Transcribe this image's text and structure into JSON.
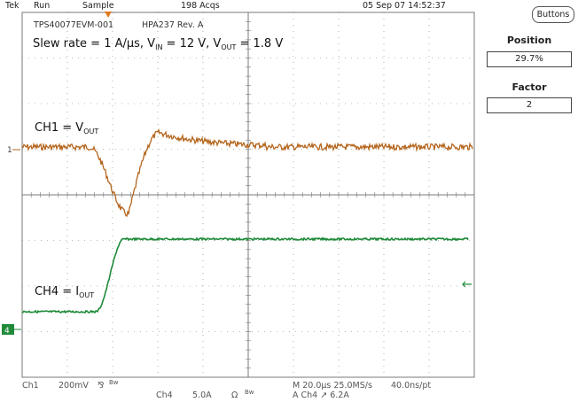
{
  "topbar": {
    "brand": "Tek",
    "run_state": "Run",
    "mode": "Sample",
    "acqs": "198 Acqs",
    "datetime": "05 Sep 07 14:52:37"
  },
  "screen": {
    "board_id": "TPS40077EVM-001",
    "rev": "HPA237 Rev. A",
    "test_condition": {
      "prefix": "Slew rate = 1 A/μs, V",
      "in_sub": "IN",
      "mid": " = 12 V, V",
      "out_sub": "OUT",
      "suffix": " = 1.8 V"
    },
    "ch1_label": {
      "main": "CH1 = V",
      "sub": "OUT"
    },
    "ch4_label": {
      "main": "CH4 = I",
      "sub": "OUT"
    },
    "ch1_marker": "1",
    "ch4_marker": "4"
  },
  "side_panel": {
    "buttons_label": "Buttons",
    "position_label": "Position",
    "position_value": "29.7%",
    "factor_label": "Factor",
    "factor_value": "2"
  },
  "bottombar": {
    "ch1": "Ch1",
    "ch1_scale": "200mV",
    "ch1_coupling": "⅋",
    "ch1_bw": "Bw",
    "ch4": "Ch4",
    "ch4_scale": "5.0A",
    "ch4_impedance": "Ω",
    "ch4_bw": "Bw",
    "timebase": "M 20.0μs 25.0MS/s",
    "record": "40.0ns/pt",
    "trigger": "A  Ch4  ↗  6.2A"
  },
  "colors": {
    "ch1_trace": "#b5651d",
    "ch4_trace": "#1f8a3a",
    "grid": "#7a7a7a",
    "marker_green": "#1f8a3a",
    "trigger_marker": "#e07a1f"
  },
  "icons": {
    "trigger_position": "down-triangle-icon",
    "trigger_level": "left-arrow-icon"
  }
}
